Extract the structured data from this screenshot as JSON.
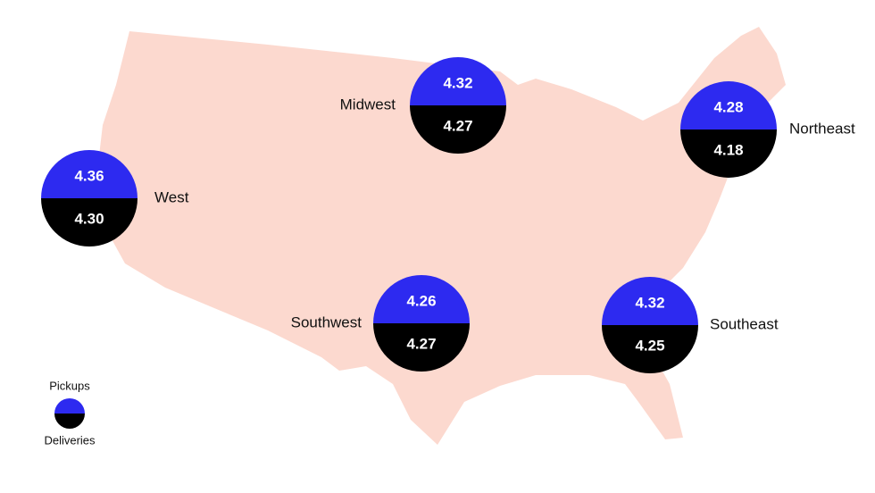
{
  "legend": {
    "pickups": "Pickups",
    "deliveries": "Deliveries",
    "pickups_color": "#2d2af0",
    "deliveries_color": "#000000"
  },
  "regions": [
    {
      "name": "West",
      "pickups": "4.36",
      "deliveries": "4.30"
    },
    {
      "name": "Midwest",
      "pickups": "4.32",
      "deliveries": "4.27"
    },
    {
      "name": "Northeast",
      "pickups": "4.28",
      "deliveries": "4.18"
    },
    {
      "name": "Southwest",
      "pickups": "4.26",
      "deliveries": "4.27"
    },
    {
      "name": "Southeast",
      "pickups": "4.32",
      "deliveries": "4.25"
    }
  ]
}
